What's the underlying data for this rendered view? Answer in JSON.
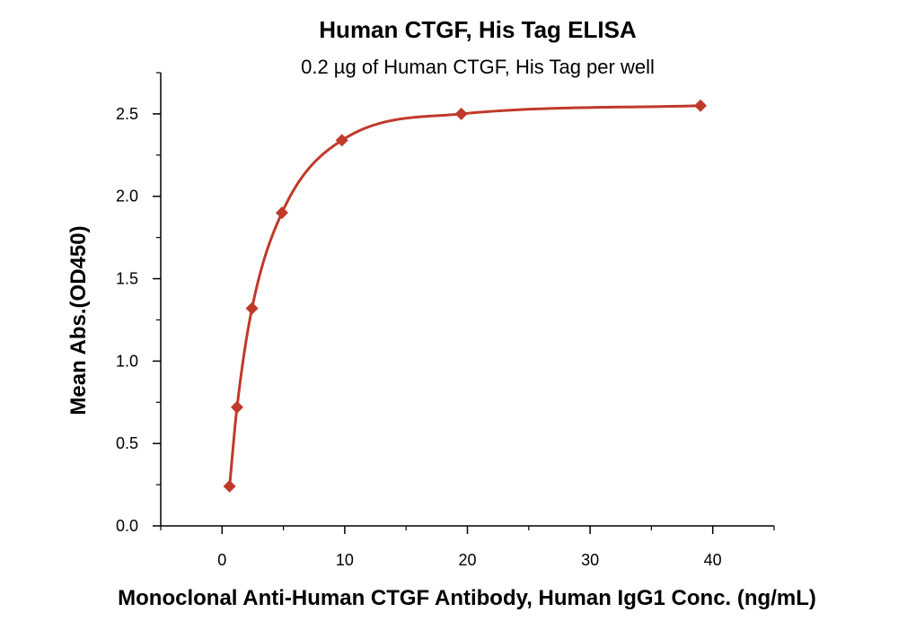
{
  "chart_data": {
    "type": "scatter",
    "title": "Human CTGF, His Tag ELISA",
    "subtitle": "0.2 µg of Human CTGF, His Tag per well",
    "xlabel": "Monoclonal Anti-Human CTGF Antibody, Human IgG1 Conc. (ng/mL)",
    "ylabel": "Mean Abs.(OD450)",
    "xlim": [
      -5,
      45
    ],
    "ylim": [
      0,
      2.75
    ],
    "x_ticks": [
      "0",
      "10",
      "20",
      "30",
      "40"
    ],
    "y_ticks": [
      "0.0",
      "0.5",
      "1.0",
      "1.5",
      "2.0",
      "2.5"
    ],
    "grid": false,
    "color": "#c0392b",
    "series": [
      {
        "x": [
          0.61,
          1.22,
          2.44,
          4.88,
          9.77,
          19.5,
          39.0
        ],
        "y": [
          0.24,
          0.72,
          1.32,
          1.9,
          2.34,
          2.5,
          2.55
        ],
        "marker": "diamond",
        "fit": "4PL curve"
      }
    ]
  }
}
